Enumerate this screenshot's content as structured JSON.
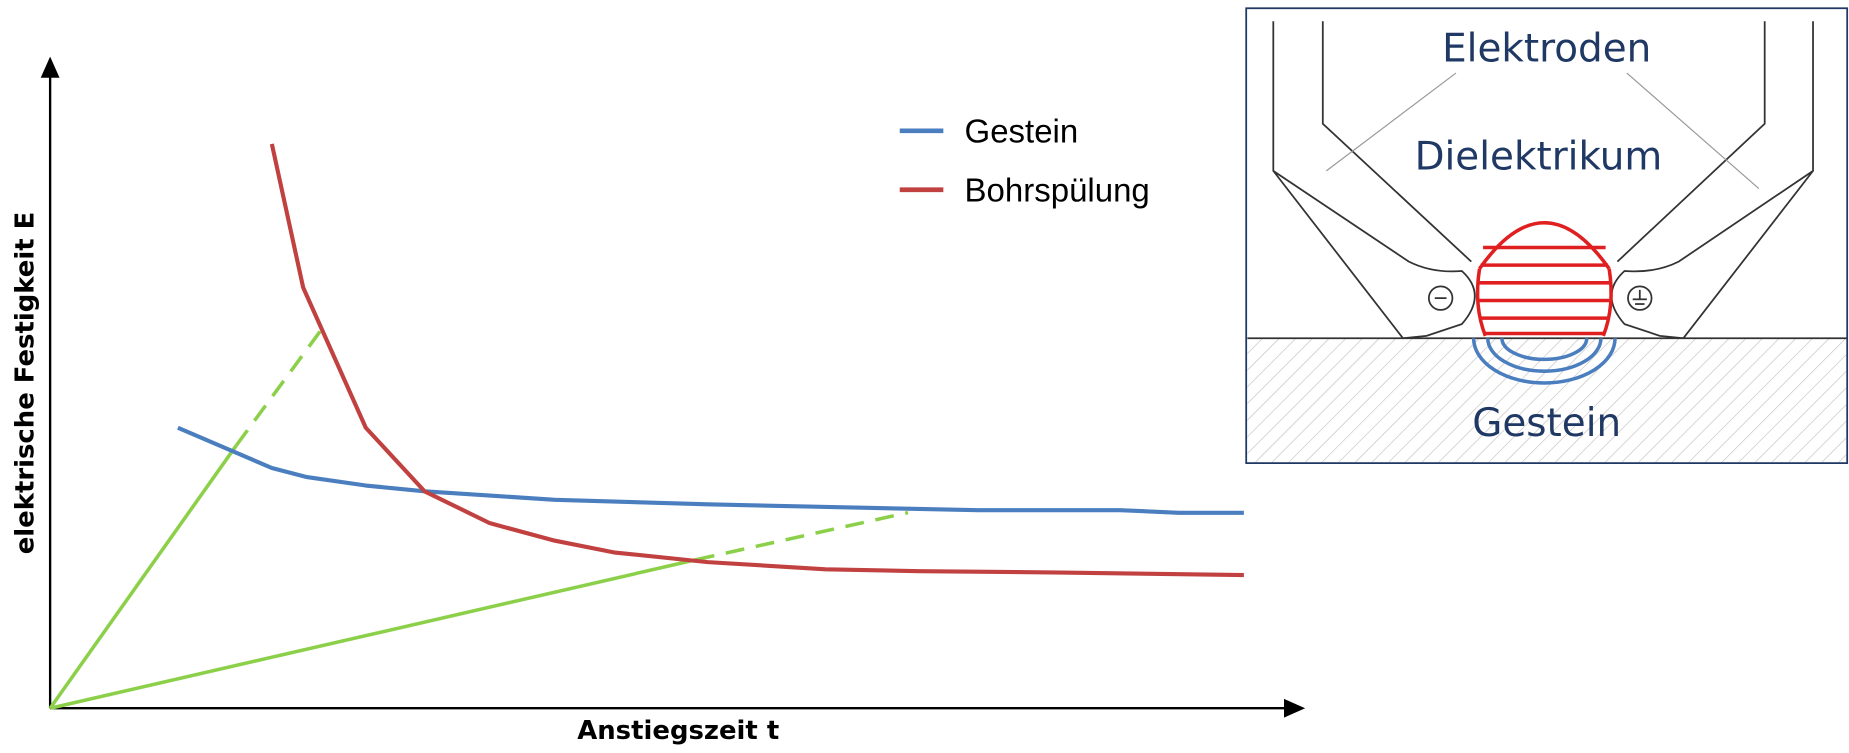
{
  "chart_data": {
    "type": "line",
    "xlabel": "Anstiegszeit t",
    "ylabel": "elektrische Festigkeit E",
    "xlim": [
      0,
      100
    ],
    "ylim": [
      0,
      100
    ],
    "series": [
      {
        "name": "Gestein",
        "color": "#4a7ebf",
        "x": [
          10.2,
          17.7,
          20.5,
          25.2,
          29.9,
          40.3,
          52.5,
          74.1,
          85.4,
          90.1,
          95.3
        ],
        "values": [
          43.2,
          37.0,
          35.6,
          34.3,
          33.4,
          32.1,
          31.4,
          30.5,
          30.5,
          30.1,
          30.1
        ]
      },
      {
        "name": "Bohrspülung",
        "color": "#c0413f",
        "x": [
          17.7,
          20.2,
          25.2,
          29.9,
          35.1,
          40.3,
          45.0,
          52.5,
          61.9,
          69.4,
          80.7,
          95.3
        ],
        "values": [
          86.9,
          64.8,
          43.2,
          33.4,
          28.5,
          25.8,
          24.0,
          22.5,
          21.4,
          21.1,
          20.9,
          20.5
        ]
      }
    ],
    "annotations": [
      "Elektroden",
      "Dielektrikum",
      "Gestein"
    ]
  }
}
